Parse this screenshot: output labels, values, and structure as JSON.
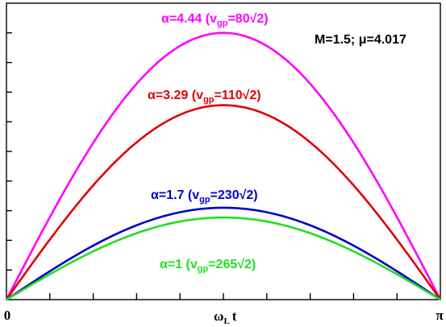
{
  "chart_data": {
    "type": "line",
    "x_label_main": "ω",
    "x_label_sub": "L",
    "x_label_tail": "t",
    "x_tick_labels": [
      "0",
      "π"
    ],
    "xlim": [
      0,
      3.14159
    ],
    "ylim": [
      0,
      1
    ],
    "grid": false,
    "annotation": "M=1.5; μ=4.017",
    "series": [
      {
        "name": "α=4.44 (vgp=80√2)",
        "label_main": "α=4.44 (v",
        "label_sub": "gp",
        "label_tail": "=80√2)",
        "color": "#ff00ff",
        "peak": 0.9
      },
      {
        "name": "α=3.29 (vgp=110√2)",
        "label_main": "α=3.29 (v",
        "label_sub": "gp",
        "label_tail": "=110√2)",
        "color": "#e00000",
        "peak": 0.656
      },
      {
        "name": "α=1.7 (vgp=230√2)",
        "label_main": "α=1.7 (v",
        "label_sub": "gp",
        "label_tail": "=230√2)",
        "color": "#0000cc",
        "peak": 0.31
      },
      {
        "name": "α=1 (vgp=265√2)",
        "label_main": "α=1 (v",
        "label_sub": "gp",
        "label_tail": "=265√2)",
        "color": "#22dd22",
        "peak": 0.277
      }
    ]
  }
}
